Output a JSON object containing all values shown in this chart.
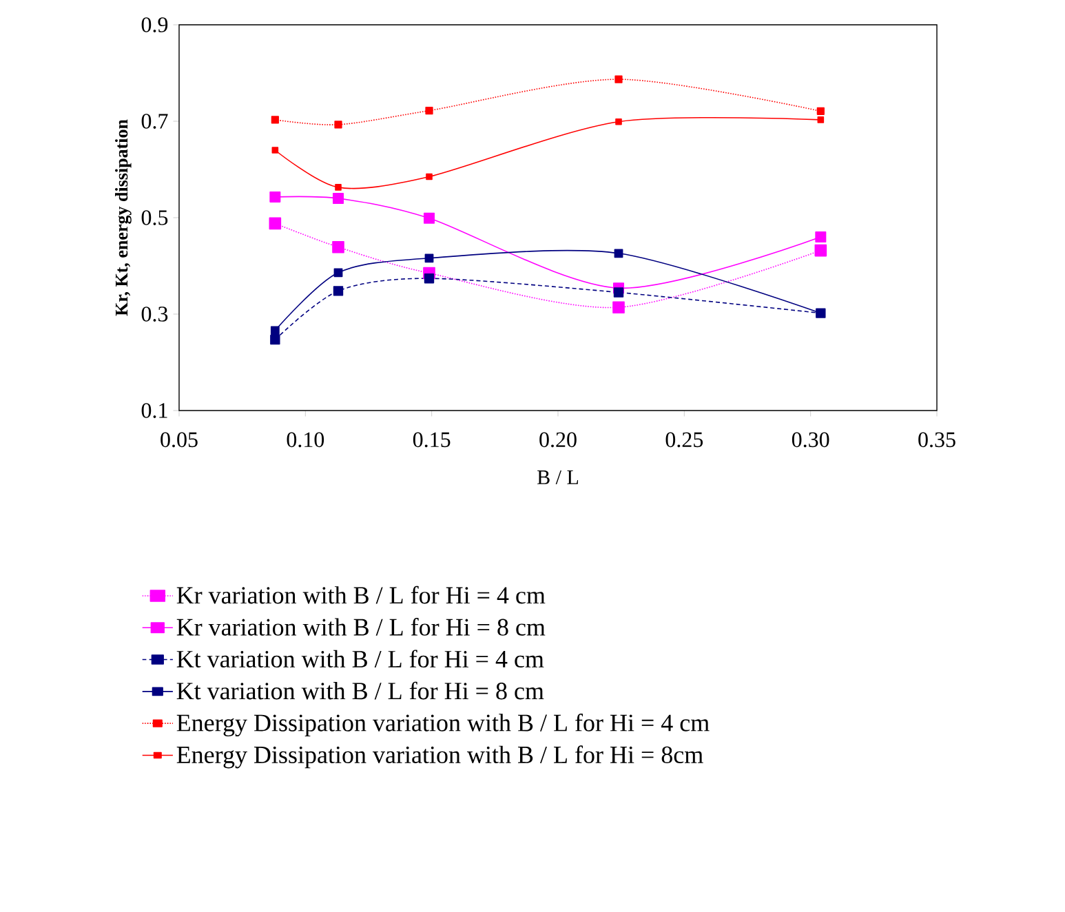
{
  "chart_data": {
    "type": "line",
    "xlabel": "B / L",
    "ylabel": "Kr, Kt, energy dissipation",
    "x": [
      0.088,
      0.113,
      0.149,
      0.224,
      0.304
    ],
    "series": [
      {
        "name": "Kr variation with B / L for Hi = 4 cm",
        "color": "#ff00ff",
        "line_style": "dotted",
        "values": [
          0.488,
          0.439,
          0.385,
          0.314,
          0.432
        ]
      },
      {
        "name": "Kr variation with B / L for Hi = 8 cm",
        "color": "#ff00ff",
        "line_style": "solid",
        "values": [
          0.543,
          0.54,
          0.499,
          0.354,
          0.46
        ]
      },
      {
        "name": "Kt variation with B / L for Hi = 4 cm",
        "color": "#000080",
        "line_style": "dashed",
        "values": [
          0.247,
          0.348,
          0.374,
          0.345,
          0.302
        ]
      },
      {
        "name": "Kt variation with B / L for Hi = 8 cm",
        "color": "#000080",
        "line_style": "solid",
        "values": [
          0.266,
          0.386,
          0.416,
          0.426,
          0.302
        ]
      },
      {
        "name": "Energy Dissipation variation with B / L for Hi = 4 cm",
        "color": "#ff0000",
        "line_style": "dotted",
        "values": [
          0.703,
          0.693,
          0.722,
          0.787,
          0.721
        ]
      },
      {
        "name": "Energy Dissipation variation with B / L for Hi = 8cm",
        "color": "#ff0000",
        "line_style": "solid",
        "values": [
          0.64,
          0.563,
          0.585,
          0.699,
          0.703
        ]
      }
    ],
    "xlim": [
      0.05,
      0.35
    ],
    "xticks": [
      {
        "value": 0.05,
        "label": "0.05"
      },
      {
        "value": 0.1,
        "label": "0.10"
      },
      {
        "value": 0.15,
        "label": "0.15"
      },
      {
        "value": 0.2,
        "label": "0.20"
      },
      {
        "value": 0.25,
        "label": "0.25"
      },
      {
        "value": 0.3,
        "label": "0.30"
      },
      {
        "value": 0.35,
        "label": "0.35"
      }
    ],
    "ylim": [
      0.1,
      0.9
    ],
    "yticks": [
      0.1,
      0.3,
      0.5,
      0.7,
      0.9
    ],
    "marker": "square",
    "legend": "bottom",
    "grid": false
  }
}
